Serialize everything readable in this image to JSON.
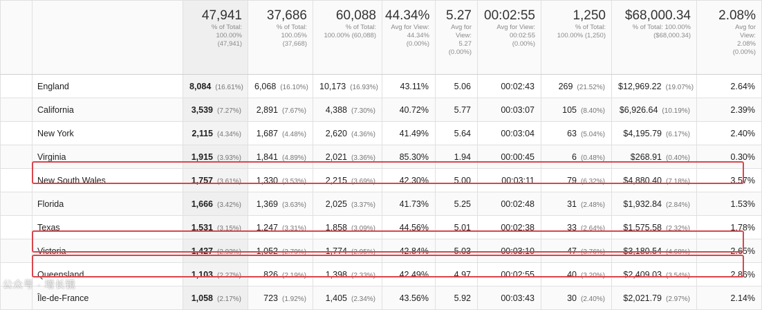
{
  "summary": {
    "users": {
      "value": "47,941",
      "line1": "% of Total:",
      "line2": "100.00%",
      "line3": "(47,941)"
    },
    "new_users": {
      "value": "37,686",
      "line1": "% of Total:",
      "line2": "100.05%",
      "line3": "(37,668)"
    },
    "sessions": {
      "value": "60,088",
      "line1": "% of Total:",
      "line2": "100.00% (60,088)",
      "line3": ""
    },
    "bounce_rate": {
      "value": "44.34%",
      "line1": "Avg for View:",
      "line2": "44.34%",
      "line3": "(0.00%)"
    },
    "pages_per_session": {
      "value": "5.27",
      "line1": "Avg for",
      "line2": "View:",
      "line3": "5.27",
      "line4": "(0.00%)"
    },
    "avg_session_duration": {
      "value": "00:02:55",
      "line1": "Avg for View:",
      "line2": "00:02:55",
      "line3": "(0.00%)"
    },
    "transactions": {
      "value": "1,250",
      "line1": "% of Total:",
      "line2": "100.00% (1,250)",
      "line3": ""
    },
    "revenue": {
      "value": "$68,000.34",
      "line1": "% of Total: 100.00%",
      "line2": "($68,000.34)",
      "line3": ""
    },
    "conversion_rate": {
      "value": "2.08%",
      "line1": "Avg for",
      "line2": "View:",
      "line3": "2.08%",
      "line4": "(0.00%)"
    }
  },
  "rows": [
    {
      "region": "England",
      "users": "8,084",
      "users_pct": "(16.61%)",
      "new_users": "6,068",
      "new_users_pct": "(16.10%)",
      "sessions": "10,173",
      "sessions_pct": "(16.93%)",
      "bounce_rate": "43.11%",
      "pages": "5.06",
      "duration": "00:02:43",
      "transactions": "269",
      "transactions_pct": "(21.52%)",
      "revenue": "$12,969.22",
      "revenue_pct": "(19.07%)",
      "conversion": "2.64%"
    },
    {
      "region": "California",
      "users": "3,539",
      "users_pct": "(7.27%)",
      "new_users": "2,891",
      "new_users_pct": "(7.67%)",
      "sessions": "4,388",
      "sessions_pct": "(7.30%)",
      "bounce_rate": "40.72%",
      "pages": "5.77",
      "duration": "00:03:07",
      "transactions": "105",
      "transactions_pct": "(8.40%)",
      "revenue": "$6,926.64",
      "revenue_pct": "(10.19%)",
      "conversion": "2.39%"
    },
    {
      "region": "New York",
      "users": "2,115",
      "users_pct": "(4.34%)",
      "new_users": "1,687",
      "new_users_pct": "(4.48%)",
      "sessions": "2,620",
      "sessions_pct": "(4.36%)",
      "bounce_rate": "41.49%",
      "pages": "5.64",
      "duration": "00:03:04",
      "transactions": "63",
      "transactions_pct": "(5.04%)",
      "revenue": "$4,195.79",
      "revenue_pct": "(6.17%)",
      "conversion": "2.40%"
    },
    {
      "region": "Virginia",
      "users": "1,915",
      "users_pct": "(3.93%)",
      "new_users": "1,841",
      "new_users_pct": "(4.89%)",
      "sessions": "2,021",
      "sessions_pct": "(3.36%)",
      "bounce_rate": "85.30%",
      "pages": "1.94",
      "duration": "00:00:45",
      "transactions": "6",
      "transactions_pct": "(0.48%)",
      "revenue": "$268.91",
      "revenue_pct": "(0.40%)",
      "conversion": "0.30%"
    },
    {
      "region": "New South Wales",
      "users": "1,757",
      "users_pct": "(3.61%)",
      "new_users": "1,330",
      "new_users_pct": "(3.53%)",
      "sessions": "2,215",
      "sessions_pct": "(3.69%)",
      "bounce_rate": "42.30%",
      "pages": "5.00",
      "duration": "00:03:11",
      "transactions": "79",
      "transactions_pct": "(6.32%)",
      "revenue": "$4,880.40",
      "revenue_pct": "(7.18%)",
      "conversion": "3.57%"
    },
    {
      "region": "Florida",
      "users": "1,666",
      "users_pct": "(3.42%)",
      "new_users": "1,369",
      "new_users_pct": "(3.63%)",
      "sessions": "2,025",
      "sessions_pct": "(3.37%)",
      "bounce_rate": "41.73%",
      "pages": "5.25",
      "duration": "00:02:48",
      "transactions": "31",
      "transactions_pct": "(2.48%)",
      "revenue": "$1,932.84",
      "revenue_pct": "(2.84%)",
      "conversion": "1.53%"
    },
    {
      "region": "Texas",
      "users": "1,531",
      "users_pct": "(3.15%)",
      "new_users": "1,247",
      "new_users_pct": "(3.31%)",
      "sessions": "1,858",
      "sessions_pct": "(3.09%)",
      "bounce_rate": "44.56%",
      "pages": "5.01",
      "duration": "00:02:38",
      "transactions": "33",
      "transactions_pct": "(2.64%)",
      "revenue": "$1,575.58",
      "revenue_pct": "(2.32%)",
      "conversion": "1.78%"
    },
    {
      "region": "Victoria",
      "users": "1,427",
      "users_pct": "(2.93%)",
      "new_users": "1,052",
      "new_users_pct": "(2.79%)",
      "sessions": "1,774",
      "sessions_pct": "(2.95%)",
      "bounce_rate": "42.84%",
      "pages": "5.03",
      "duration": "00:03:10",
      "transactions": "47",
      "transactions_pct": "(3.76%)",
      "revenue": "$3,180.54",
      "revenue_pct": "(4.68%)",
      "conversion": "2.65%"
    },
    {
      "region": "Queensland",
      "users": "1,103",
      "users_pct": "(2.27%)",
      "new_users": "826",
      "new_users_pct": "(2.19%)",
      "sessions": "1,398",
      "sessions_pct": "(2.33%)",
      "bounce_rate": "42.49%",
      "pages": "4.97",
      "duration": "00:02:55",
      "transactions": "40",
      "transactions_pct": "(3.20%)",
      "revenue": "$2,409.03",
      "revenue_pct": "(3.54%)",
      "conversion": "2.86%"
    },
    {
      "region": "Île-de-France",
      "users": "1,058",
      "users_pct": "(2.17%)",
      "new_users": "723",
      "new_users_pct": "(1.92%)",
      "sessions": "1,405",
      "sessions_pct": "(2.34%)",
      "bounce_rate": "43.56%",
      "pages": "5.92",
      "duration": "00:03:43",
      "transactions": "30",
      "transactions_pct": "(2.40%)",
      "revenue": "$2,021.79",
      "revenue_pct": "(2.97%)",
      "conversion": "2.14%"
    }
  ],
  "highlight_color": "#d9454b",
  "watermark": "公众号 · 增长镜"
}
